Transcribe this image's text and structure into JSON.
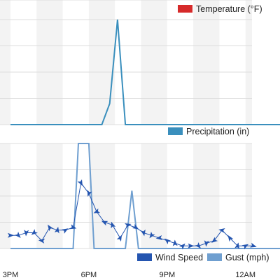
{
  "chart_data": [
    {
      "type": "bar",
      "legend": [
        {
          "label": "Temperature (°F)",
          "color": "#d62a2a"
        }
      ],
      "series": [],
      "grid": true
    },
    {
      "type": "area",
      "legend": [
        {
          "label": "Precipitation (in)",
          "color": "#3a8fbd"
        }
      ],
      "ylim": [
        0,
        0.5
      ],
      "series": [
        {
          "name": "Precipitation (in)",
          "color": "#3a8fbd",
          "points": [
            [
              0,
              0
            ],
            [
              3.5,
              0
            ],
            [
              3.8,
              0.1
            ],
            [
              4.1,
              0.5
            ],
            [
              4.4,
              0
            ],
            [
              6,
              0
            ],
            [
              9,
              0
            ],
            [
              12,
              0
            ]
          ]
        }
      ],
      "grid": true
    },
    {
      "type": "line",
      "legend": [
        {
          "label": "Wind Speed",
          "color": "#2455b0"
        },
        {
          "label": "Gust (mph)",
          "color": "#6f9fd0"
        }
      ],
      "ylim": [
        0,
        40
      ],
      "series": [
        {
          "name": "Wind Speed",
          "color": "#2455b0",
          "points": [
            [
              0,
              5
            ],
            [
              0.3,
              5
            ],
            [
              0.6,
              6
            ],
            [
              0.9,
              6
            ],
            [
              1.2,
              3
            ],
            [
              1.5,
              8
            ],
            [
              1.8,
              7
            ],
            [
              2.1,
              7
            ],
            [
              2.4,
              8
            ],
            [
              2.7,
              25
            ],
            [
              3.0,
              21
            ],
            [
              3.3,
              14
            ],
            [
              3.6,
              10
            ],
            [
              3.9,
              9
            ],
            [
              4.2,
              4
            ],
            [
              4.5,
              9
            ],
            [
              4.8,
              8
            ],
            [
              5.1,
              6
            ],
            [
              5.4,
              5
            ],
            [
              5.7,
              4
            ],
            [
              6.0,
              3
            ],
            [
              6.3,
              2
            ],
            [
              6.6,
              1
            ],
            [
              6.9,
              1
            ],
            [
              7.2,
              1
            ],
            [
              7.5,
              2
            ],
            [
              7.8,
              3
            ],
            [
              8.1,
              7
            ],
            [
              8.4,
              4
            ],
            [
              8.7,
              1
            ],
            [
              9.0,
              1
            ],
            [
              9.3,
              1
            ]
          ]
        },
        {
          "name": "Gust (mph)",
          "color": "#6f9fd0",
          "points": [
            [
              0,
              0
            ],
            [
              2.4,
              0
            ],
            [
              2.6,
              40
            ],
            [
              3.0,
              40
            ],
            [
              3.2,
              0
            ],
            [
              4.4,
              0
            ],
            [
              4.65,
              22
            ],
            [
              4.9,
              0
            ],
            [
              12,
              0
            ]
          ]
        }
      ],
      "grid": true
    }
  ],
  "x_axis": {
    "ticks": [
      {
        "label": "3PM",
        "x": 0
      },
      {
        "label": "6PM",
        "x": 3
      },
      {
        "label": "9PM",
        "x": 6
      },
      {
        "label": "12AM",
        "x": 9
      }
    ]
  }
}
